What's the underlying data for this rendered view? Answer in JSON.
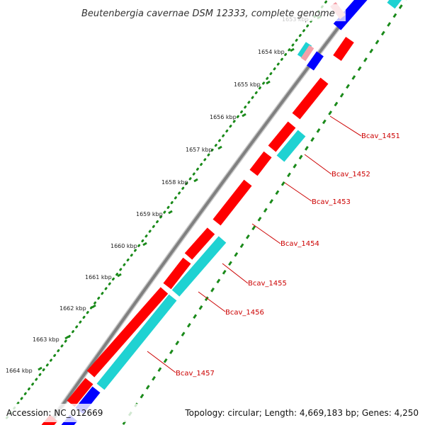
{
  "title": "Beutenbergia cavernae DSM 12333, complete genome",
  "footer": {
    "accession": "Accession: NC_012669",
    "topology": "Topology: circular; Length: 4,669,183 bp; Genes: 4,250"
  },
  "ticks": [
    "1653 kbp",
    "1654 kbp",
    "1655 kbp",
    "1656 kbp",
    "1657 kbp",
    "1658 kbp",
    "1659 kbp",
    "1660 kbp",
    "1661 kbp",
    "1662 kbp",
    "1663 kbp",
    "1664 kbp"
  ],
  "genes": [
    "Bcav_1451",
    "Bcav_1452",
    "Bcav_1453",
    "Bcav_1454",
    "Bcav_1455",
    "Bcav_1456",
    "Bcav_1457"
  ],
  "colors": {
    "forward_cds": "#ff0000",
    "reverse_cds": "#0000ff",
    "feature_cyan": "#1fd2d2",
    "light_red": "#f4a0a8",
    "backbone": "#808080",
    "tick_dots": "#1a8a1a",
    "gene_label": "#cc0000"
  }
}
